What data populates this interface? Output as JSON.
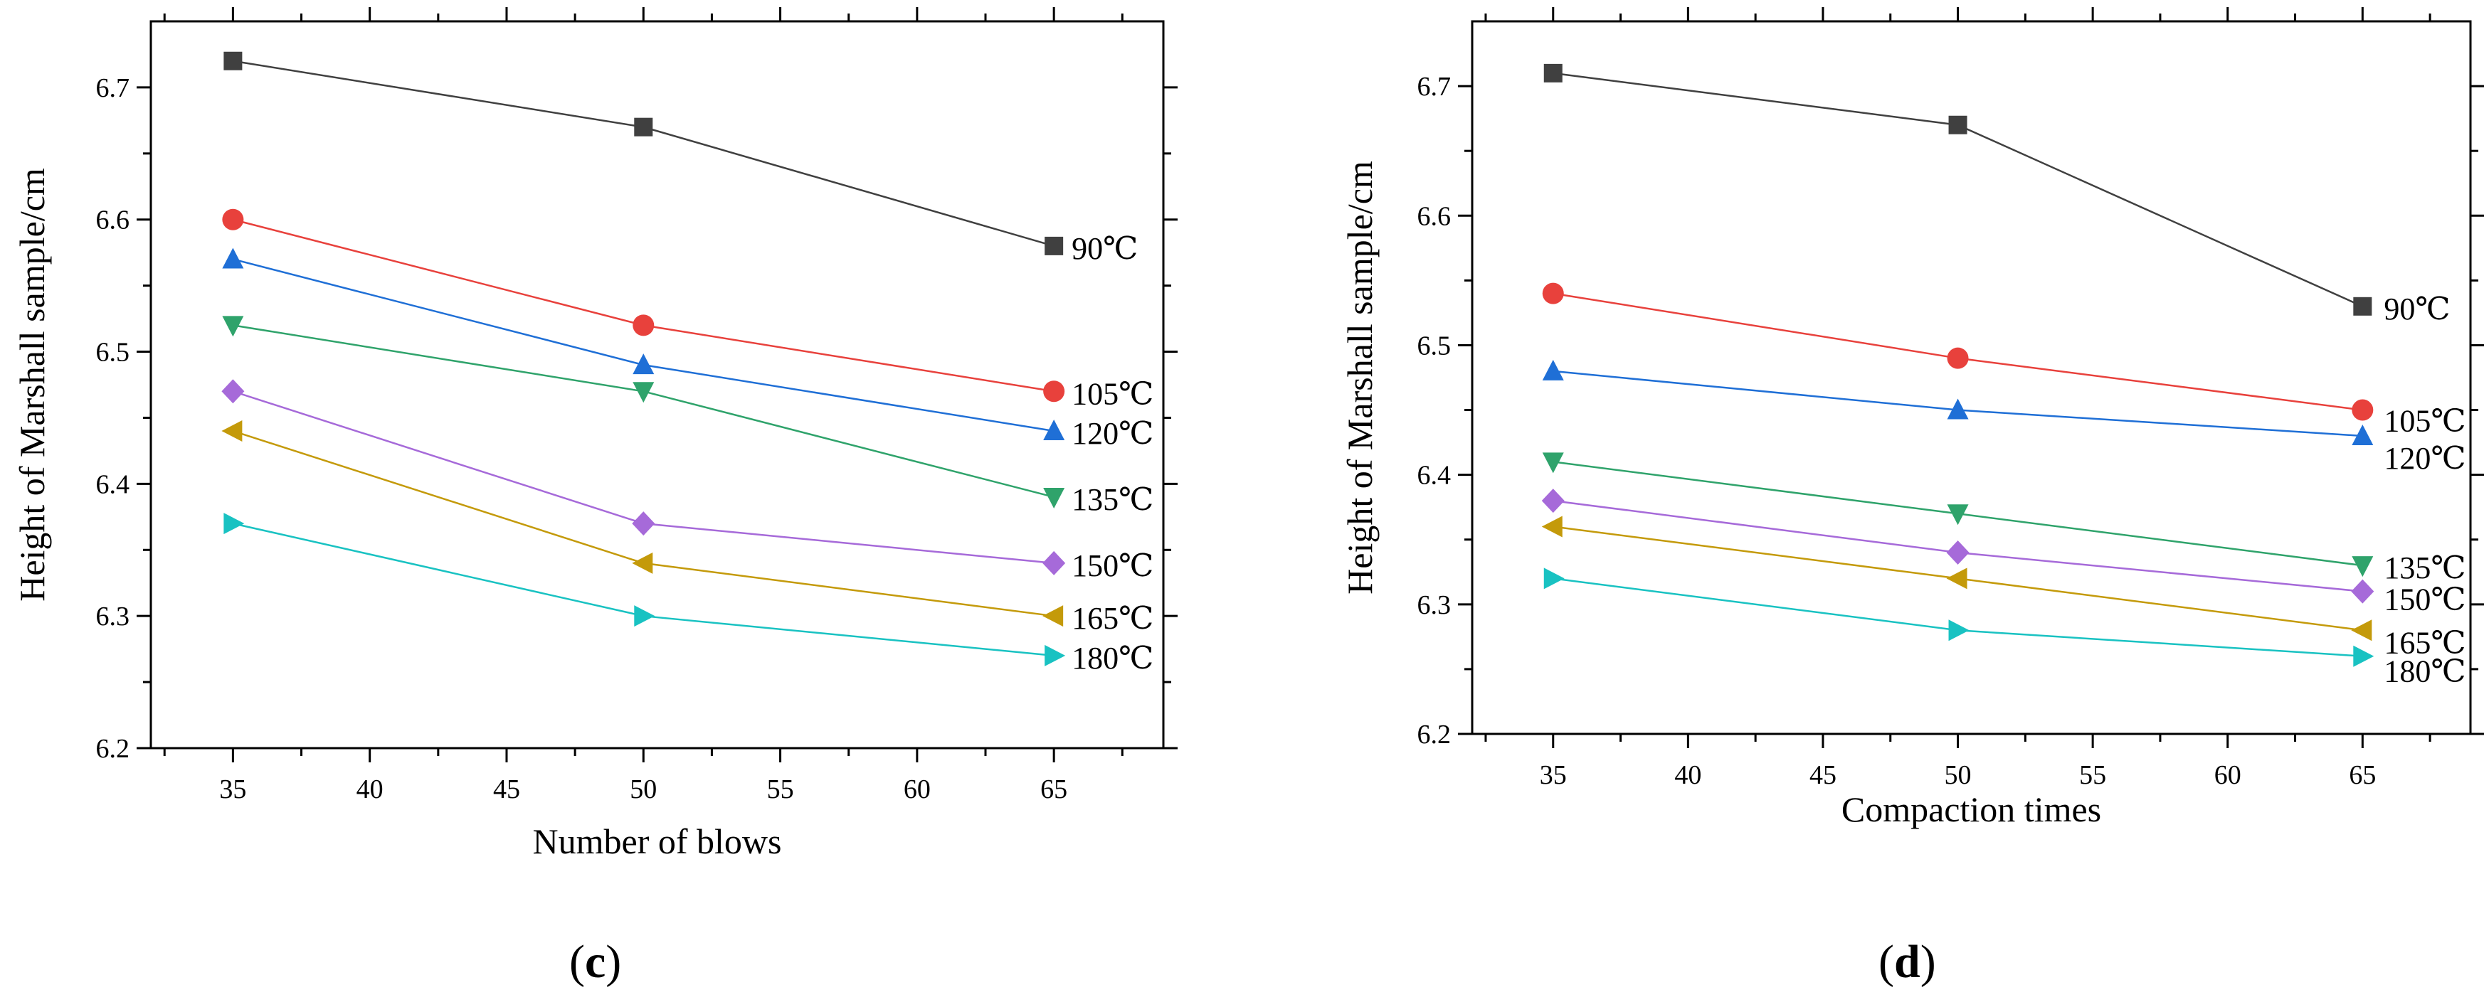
{
  "chart_data": [
    {
      "type": "line",
      "panel_label": "c",
      "xlabel": "Number of blows",
      "ylabel": "Height of Marshall sample/cm",
      "xlim": [
        32,
        69
      ],
      "ylim": [
        6.2,
        6.75
      ],
      "xticks": [
        35,
        40,
        45,
        50,
        55,
        60,
        65
      ],
      "yticks": [
        6.2,
        6.3,
        6.4,
        6.5,
        6.6,
        6.7
      ],
      "x": [
        35,
        50,
        65
      ],
      "grid": false,
      "series": [
        {
          "name": "90℃",
          "values": [
            6.72,
            6.67,
            6.58
          ],
          "color": "#404040",
          "marker": "square"
        },
        {
          "name": "105℃",
          "values": [
            6.6,
            6.52,
            6.47
          ],
          "color": "#e8413c",
          "marker": "circle"
        },
        {
          "name": "120℃",
          "values": [
            6.57,
            6.49,
            6.44
          ],
          "color": "#1f6fd6",
          "marker": "triangle-up"
        },
        {
          "name": "135℃",
          "values": [
            6.52,
            6.47,
            6.39
          ],
          "color": "#2fa36b",
          "marker": "triangle-down"
        },
        {
          "name": "150℃",
          "values": [
            6.47,
            6.37,
            6.34
          ],
          "color": "#a66ad9",
          "marker": "diamond"
        },
        {
          "name": "165℃",
          "values": [
            6.44,
            6.34,
            6.3
          ],
          "color": "#c49a0a",
          "marker": "triangle-left"
        },
        {
          "name": "180℃",
          "values": [
            6.37,
            6.3,
            6.27
          ],
          "color": "#19c2c2",
          "marker": "triangle-right"
        }
      ]
    },
    {
      "type": "line",
      "panel_label": "d",
      "xlabel": "Compaction times",
      "ylabel": "Height of Marshall sample/cm",
      "xlim": [
        32,
        69
      ],
      "ylim": [
        6.2,
        6.75
      ],
      "xticks": [
        35,
        40,
        45,
        50,
        55,
        60,
        65
      ],
      "yticks": [
        6.2,
        6.3,
        6.4,
        6.5,
        6.6,
        6.7
      ],
      "x": [
        35,
        50,
        65
      ],
      "grid": false,
      "series": [
        {
          "name": "90℃",
          "values": [
            6.71,
            6.67,
            6.53
          ],
          "color": "#404040",
          "marker": "square"
        },
        {
          "name": "105℃",
          "values": [
            6.54,
            6.49,
            6.45
          ],
          "color": "#e8413c",
          "marker": "circle"
        },
        {
          "name": "120℃",
          "values": [
            6.48,
            6.45,
            6.43
          ],
          "color": "#1f6fd6",
          "marker": "triangle-up"
        },
        {
          "name": "135℃",
          "values": [
            6.41,
            6.37,
            6.33
          ],
          "color": "#2fa36b",
          "marker": "triangle-down"
        },
        {
          "name": "150℃",
          "values": [
            6.38,
            6.34,
            6.31
          ],
          "color": "#a66ad9",
          "marker": "diamond"
        },
        {
          "name": "165℃",
          "values": [
            6.36,
            6.32,
            6.28
          ],
          "color": "#c49a0a",
          "marker": "triangle-left"
        },
        {
          "name": "180℃",
          "values": [
            6.32,
            6.28,
            6.26
          ],
          "color": "#19c2c2",
          "marker": "triangle-right"
        }
      ]
    }
  ]
}
